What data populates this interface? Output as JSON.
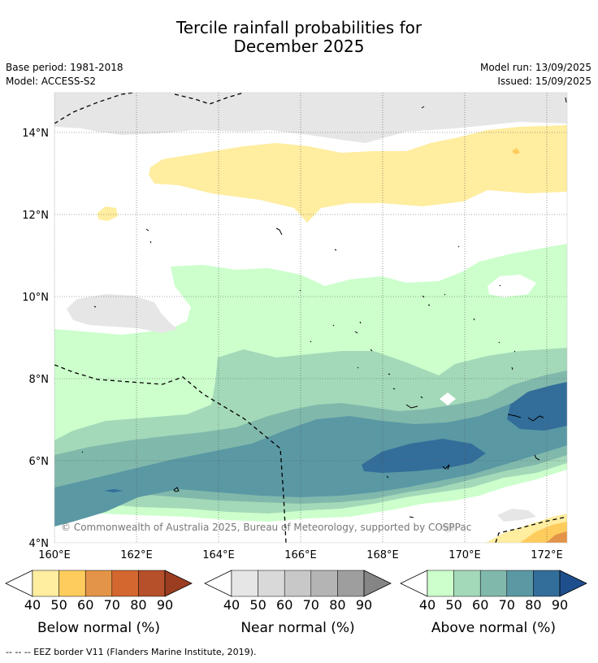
{
  "title_line1": "Tercile rainfall probabilities for",
  "title_line2": "December 2025",
  "info": {
    "base_period": "Base period: 1981-2018",
    "model": "Model: ACCESS-S2",
    "model_run": "Model run: 13/09/2025",
    "issued": "Issued: 15/09/2025"
  },
  "map": {
    "lat_labels": [
      "14°N",
      "12°N",
      "10°N",
      "8°N",
      "6°N",
      "4°N"
    ],
    "lon_labels": [
      "160°E",
      "162°E",
      "164°E",
      "166°E",
      "168°E",
      "170°E",
      "172°E"
    ],
    "copyright": "© Commonwealth of Australia 2025, Bureau of Meteorology, supported by COSPPac"
  },
  "legends": [
    {
      "label": "Below normal (%)",
      "ticks": [
        "40",
        "50",
        "60",
        "70",
        "80",
        "90"
      ],
      "colors": [
        "#ffeda0",
        "#fecc5c",
        "#e39448",
        "#d2672f",
        "#b5502a",
        "#9b3d20"
      ]
    },
    {
      "label": "Near normal (%)",
      "ticks": [
        "40",
        "50",
        "60",
        "70",
        "80",
        "90"
      ],
      "colors": [
        "#e6e6e6",
        "#d9d9d9",
        "#c8c8c8",
        "#b4b4b4",
        "#9e9e9e",
        "#858585"
      ]
    },
    {
      "label": "Above normal (%)",
      "ticks": [
        "40",
        "50",
        "60",
        "70",
        "80",
        "90"
      ],
      "colors": [
        "#ccffcc",
        "#a3d9b8",
        "#80b8ac",
        "#5a98a4",
        "#336d99",
        "#1f4e8c"
      ]
    }
  ],
  "footer": "-- -- -- EEZ border V11 (Flanders Marine Institute, 2019).",
  "colors": {
    "grey_near": "#e6e6e6",
    "yellow_below": "#ffeda0",
    "orange_below": "#fecc5c",
    "dark_orange_below": "#e39448",
    "green_above_40": "#ccffcc",
    "green_above_50": "#a3d9b8",
    "teal_above_60": "#80b8ac",
    "teal_above_70": "#5a98a4",
    "blue_above_80": "#336d99"
  }
}
